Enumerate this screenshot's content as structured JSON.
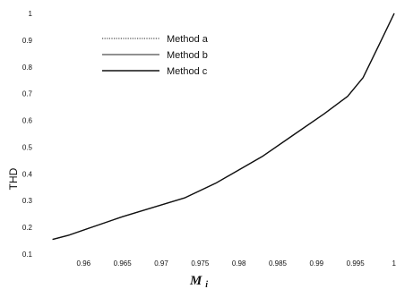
{
  "chart_data": {
    "type": "line",
    "xlabel": "M",
    "xlabel_sub": "i",
    "ylabel": "THD",
    "xlim": [
      0.955,
      1.0
    ],
    "ylim": [
      0.1,
      1.0
    ],
    "x_ticks": [
      0.96,
      0.965,
      0.97,
      0.975,
      0.98,
      0.985,
      0.99,
      0.995,
      1
    ],
    "x_tick_labels": [
      "0.96",
      "0.965",
      "0.97",
      "0.975",
      "0.98",
      "0.985",
      "0.99",
      "0.995",
      "1"
    ],
    "y_ticks": [
      0.1,
      0.2,
      0.3,
      0.4,
      0.5,
      0.6,
      0.7,
      0.8,
      0.9,
      1
    ],
    "y_tick_labels": [
      "0.1",
      "0.2",
      "0.3",
      "0.4",
      "0.5",
      "0.6",
      "0.7",
      "0.8",
      "0.9",
      "1"
    ],
    "grid": false,
    "legend_position": "top-left",
    "series": [
      {
        "name": "Method a",
        "style": "dotted",
        "color": "#222222",
        "x": [
          0.956,
          0.958,
          0.961,
          0.965,
          0.969,
          0.973,
          0.977,
          0.983,
          0.987,
          0.991,
          0.994,
          0.996,
          0.998,
          1.0
        ],
        "y": [
          0.155,
          0.17,
          0.2,
          0.24,
          0.275,
          0.31,
          0.365,
          0.465,
          0.545,
          0.625,
          0.69,
          0.76,
          0.88,
          1.0
        ]
      },
      {
        "name": "Method b",
        "style": "solid-thin",
        "color": "#222222",
        "x": [
          0.956,
          0.958,
          0.961,
          0.965,
          0.969,
          0.973,
          0.977,
          0.983,
          0.987,
          0.991,
          0.994,
          0.996,
          0.998,
          1.0
        ],
        "y": [
          0.155,
          0.17,
          0.2,
          0.24,
          0.275,
          0.31,
          0.365,
          0.465,
          0.545,
          0.625,
          0.69,
          0.76,
          0.88,
          1.0
        ]
      },
      {
        "name": "Method c",
        "style": "solid",
        "color": "#111111",
        "x": [
          0.956,
          0.958,
          0.961,
          0.965,
          0.969,
          0.973,
          0.977,
          0.983,
          0.987,
          0.991,
          0.994,
          0.996,
          0.998,
          1.0
        ],
        "y": [
          0.155,
          0.17,
          0.2,
          0.24,
          0.275,
          0.31,
          0.365,
          0.465,
          0.545,
          0.625,
          0.69,
          0.76,
          0.88,
          1.0
        ]
      }
    ]
  }
}
